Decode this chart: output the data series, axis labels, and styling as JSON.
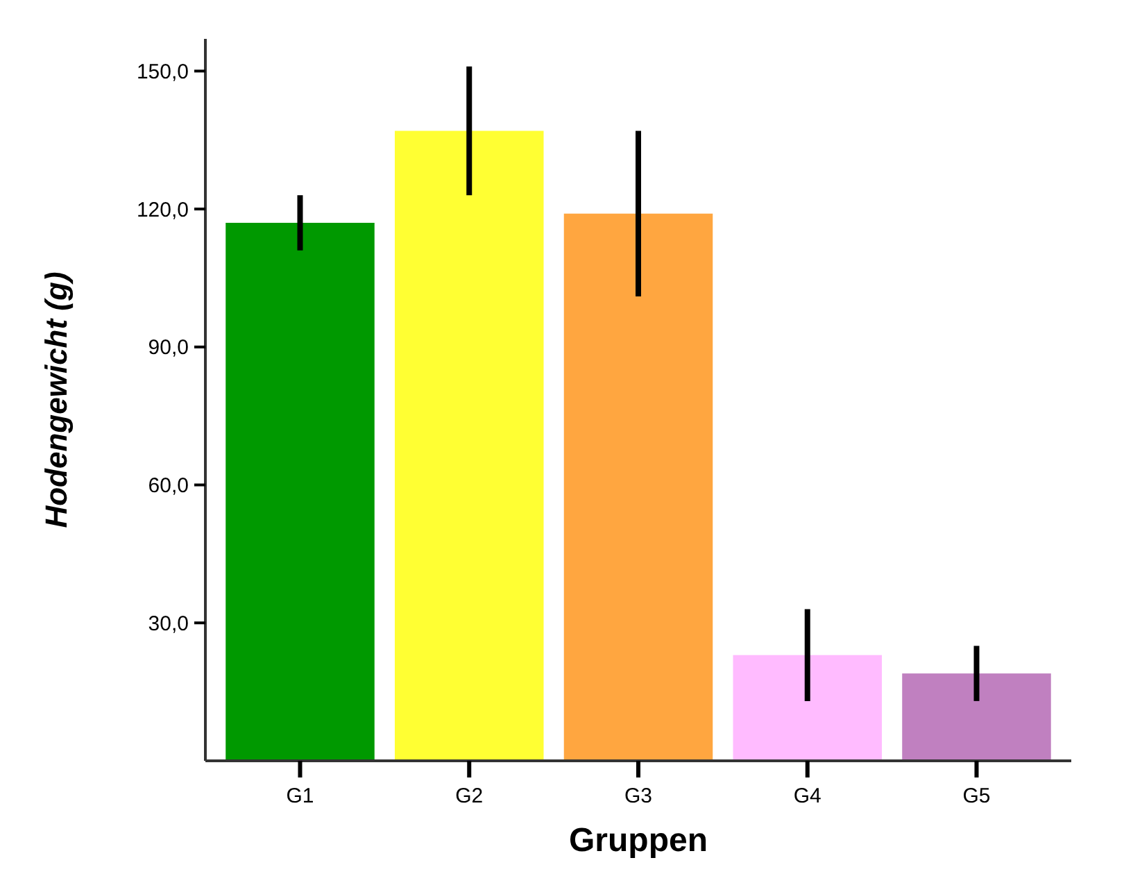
{
  "chart_data": {
    "type": "bar",
    "xlabel": "Gruppen",
    "ylabel": "Hodengewicht (g)",
    "categories": [
      "G1",
      "G2",
      "G3",
      "G4",
      "G5"
    ],
    "values": [
      117,
      137,
      119,
      23,
      19
    ],
    "errors": [
      6,
      14,
      18,
      10,
      6
    ],
    "colors": [
      "#009900",
      "#ffff33",
      "#ffa640",
      "#ffbbff",
      "#c080c0"
    ],
    "ylim": [
      0,
      157
    ],
    "yticks": [
      {
        "value": 30,
        "label": "30,0"
      },
      {
        "value": 60,
        "label": "60,0"
      },
      {
        "value": 90,
        "label": "90,0"
      },
      {
        "value": 120,
        "label": "120,0"
      },
      {
        "value": 150,
        "label": "150,0"
      }
    ],
    "grid": false
  }
}
